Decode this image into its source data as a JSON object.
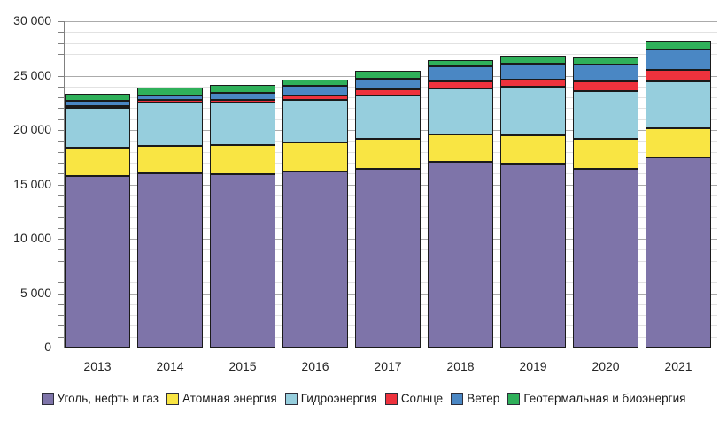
{
  "chart": {
    "title": "",
    "background": "#ffffff",
    "chart_data": {
      "type": "bar",
      "stacked": true,
      "categories": [
        "2013",
        "2014",
        "2015",
        "2016",
        "2017",
        "2018",
        "2019",
        "2020",
        "2021"
      ],
      "series": [
        {
          "name": "Уголь, нефть и газ",
          "color": "#7e74a9",
          "values": [
            15800,
            16000,
            15950,
            16200,
            16450,
            17050,
            16950,
            16400,
            17450
          ]
        },
        {
          "name": "Атомная энергия",
          "color": "#f9e543",
          "values": [
            2550,
            2550,
            2650,
            2650,
            2750,
            2550,
            2600,
            2750,
            2700
          ]
        },
        {
          "name": "Гидроэнергия",
          "color": "#96cedd",
          "values": [
            3650,
            3950,
            3950,
            3900,
            4000,
            4250,
            4450,
            4450,
            4350
          ]
        },
        {
          "name": "Солнце",
          "color": "#ee323d",
          "values": [
            200,
            250,
            250,
            400,
            500,
            650,
            650,
            850,
            1000
          ]
        },
        {
          "name": "Ветер",
          "color": "#4a87c4",
          "values": [
            450,
            400,
            650,
            900,
            1000,
            1350,
            1450,
            1550,
            1900
          ]
        },
        {
          "name": "Геотермальная и биоэнергия",
          "color": "#2fb05a",
          "values": [
            700,
            750,
            700,
            600,
            750,
            600,
            750,
            650,
            800
          ]
        }
      ],
      "xlabel": "",
      "ylabel": "",
      "ylim": [
        0,
        30000
      ],
      "grid": "horizontal, minor every 1000, major every 5000",
      "legend_position": "bottom"
    },
    "y_axis": {
      "min": 0,
      "max": 30000,
      "major_step": 5000,
      "minor_step": 1000,
      "tick_labels": [
        "0",
        "5 000",
        "10 000",
        "15 000",
        "20 000",
        "25 000",
        "30 000"
      ]
    },
    "categories": [
      "2013",
      "2014",
      "2015",
      "2016",
      "2017",
      "2018",
      "2019",
      "2020",
      "2021"
    ],
    "series": [
      {
        "name": "Уголь, нефть и газ",
        "color": "#7e74a9",
        "values": [
          15800,
          16000,
          15950,
          16200,
          16450,
          17050,
          16950,
          16400,
          17450
        ]
      },
      {
        "name": "Атомная энергия",
        "color": "#f9e543",
        "values": [
          2550,
          2550,
          2650,
          2650,
          2750,
          2550,
          2600,
          2750,
          2700
        ]
      },
      {
        "name": "Гидроэнергия",
        "color": "#96cedd",
        "values": [
          3650,
          3950,
          3950,
          3900,
          4000,
          4250,
          4450,
          4450,
          4350
        ]
      },
      {
        "name": "Солнце",
        "color": "#ee323d",
        "values": [
          200,
          250,
          250,
          400,
          500,
          650,
          650,
          850,
          1000
        ]
      },
      {
        "name": "Ветер",
        "color": "#4a87c4",
        "values": [
          450,
          400,
          650,
          900,
          1000,
          1350,
          1450,
          1550,
          1900
        ]
      },
      {
        "name": "Геотермальная и биоэнергия",
        "color": "#2fb05a",
        "values": [
          700,
          750,
          700,
          600,
          750,
          600,
          750,
          650,
          800
        ]
      }
    ]
  }
}
